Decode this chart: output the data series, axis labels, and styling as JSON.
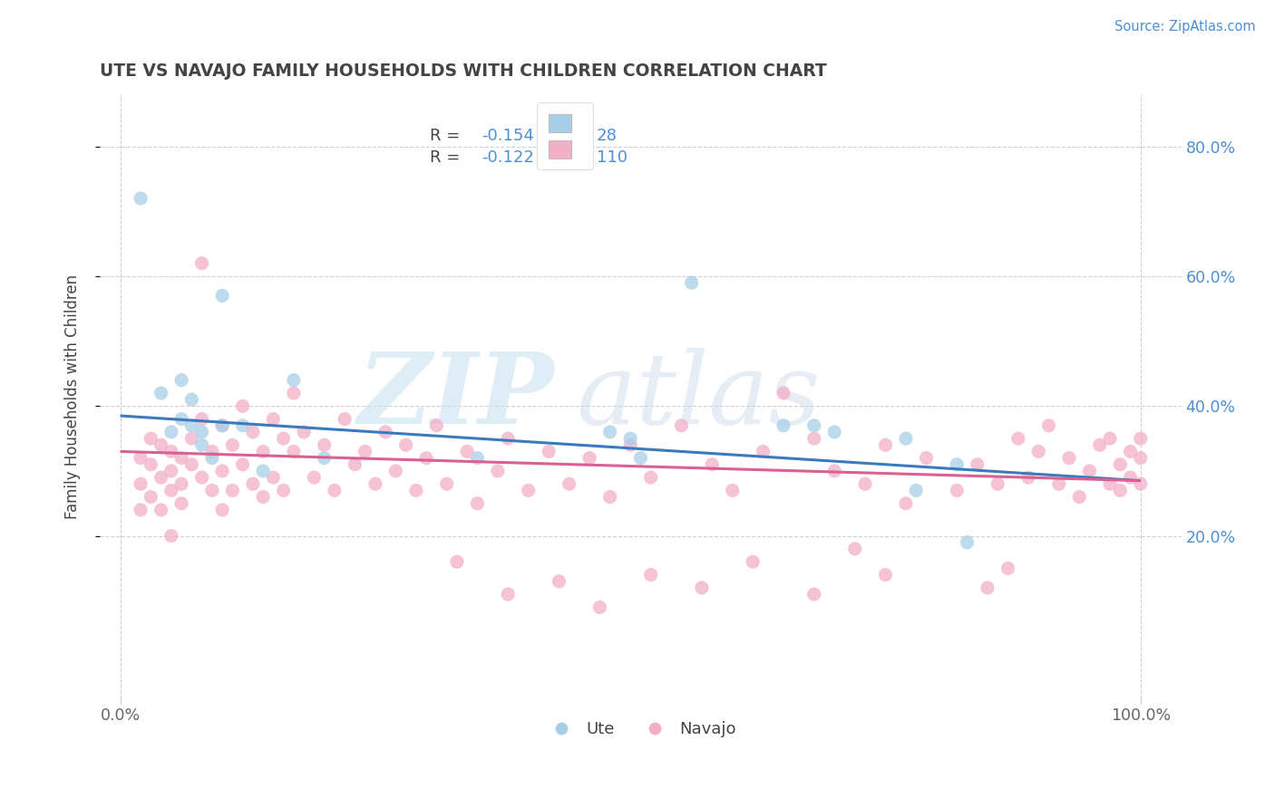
{
  "title": "UTE VS NAVAJO FAMILY HOUSEHOLDS WITH CHILDREN CORRELATION CHART",
  "source": "Source: ZipAtlas.com",
  "ylabel": "Family Households with Children",
  "watermark_zip": "ZIP",
  "watermark_atlas": "atlas",
  "ute_R": -0.154,
  "ute_N": 28,
  "navajo_R": -0.122,
  "navajo_N": 110,
  "ute_color": "#a8cfe8",
  "navajo_color": "#f4afc8",
  "ute_line_color": "#3a7abf",
  "navajo_line_color": "#d96090",
  "title_color": "#444444",
  "source_color": "#4a90d9",
  "tick_color_blue": "#4a90d9",
  "tick_color_dark": "#666666",
  "ute_x": [
    0.02,
    0.04,
    0.05,
    0.06,
    0.06,
    0.07,
    0.07,
    0.08,
    0.08,
    0.09,
    0.1,
    0.1,
    0.12,
    0.14,
    0.17,
    0.2,
    0.35,
    0.48,
    0.5,
    0.51,
    0.56,
    0.65,
    0.68,
    0.7,
    0.77,
    0.78,
    0.82,
    0.83
  ],
  "ute_y": [
    0.72,
    0.42,
    0.36,
    0.44,
    0.38,
    0.41,
    0.37,
    0.36,
    0.34,
    0.32,
    0.57,
    0.37,
    0.37,
    0.3,
    0.44,
    0.32,
    0.32,
    0.36,
    0.35,
    0.32,
    0.59,
    0.37,
    0.37,
    0.36,
    0.35,
    0.27,
    0.31,
    0.19
  ],
  "navajo_x": [
    0.02,
    0.02,
    0.02,
    0.03,
    0.03,
    0.03,
    0.04,
    0.04,
    0.04,
    0.05,
    0.05,
    0.05,
    0.05,
    0.06,
    0.06,
    0.06,
    0.07,
    0.07,
    0.08,
    0.08,
    0.08,
    0.09,
    0.09,
    0.1,
    0.1,
    0.1,
    0.11,
    0.11,
    0.12,
    0.12,
    0.13,
    0.13,
    0.14,
    0.14,
    0.15,
    0.15,
    0.16,
    0.16,
    0.17,
    0.17,
    0.18,
    0.19,
    0.2,
    0.21,
    0.22,
    0.23,
    0.24,
    0.25,
    0.26,
    0.27,
    0.28,
    0.29,
    0.3,
    0.31,
    0.32,
    0.34,
    0.35,
    0.37,
    0.38,
    0.4,
    0.42,
    0.44,
    0.46,
    0.48,
    0.5,
    0.52,
    0.55,
    0.58,
    0.6,
    0.63,
    0.65,
    0.68,
    0.7,
    0.73,
    0.75,
    0.77,
    0.79,
    0.82,
    0.84,
    0.86,
    0.88,
    0.89,
    0.9,
    0.91,
    0.92,
    0.93,
    0.94,
    0.95,
    0.96,
    0.97,
    0.97,
    0.98,
    0.98,
    0.99,
    0.99,
    1.0,
    1.0,
    1.0,
    0.85,
    0.87,
    0.75,
    0.72,
    0.68,
    0.62,
    0.57,
    0.52,
    0.47,
    0.43,
    0.38,
    0.33
  ],
  "navajo_y": [
    0.32,
    0.28,
    0.24,
    0.35,
    0.31,
    0.26,
    0.29,
    0.34,
    0.24,
    0.3,
    0.27,
    0.33,
    0.2,
    0.32,
    0.28,
    0.25,
    0.35,
    0.31,
    0.38,
    0.29,
    0.62,
    0.33,
    0.27,
    0.37,
    0.3,
    0.24,
    0.34,
    0.27,
    0.4,
    0.31,
    0.36,
    0.28,
    0.33,
    0.26,
    0.38,
    0.29,
    0.35,
    0.27,
    0.42,
    0.33,
    0.36,
    0.29,
    0.34,
    0.27,
    0.38,
    0.31,
    0.33,
    0.28,
    0.36,
    0.3,
    0.34,
    0.27,
    0.32,
    0.37,
    0.28,
    0.33,
    0.25,
    0.3,
    0.35,
    0.27,
    0.33,
    0.28,
    0.32,
    0.26,
    0.34,
    0.29,
    0.37,
    0.31,
    0.27,
    0.33,
    0.42,
    0.35,
    0.3,
    0.28,
    0.34,
    0.25,
    0.32,
    0.27,
    0.31,
    0.28,
    0.35,
    0.29,
    0.33,
    0.37,
    0.28,
    0.32,
    0.26,
    0.3,
    0.34,
    0.28,
    0.35,
    0.31,
    0.27,
    0.33,
    0.29,
    0.35,
    0.28,
    0.32,
    0.12,
    0.15,
    0.14,
    0.18,
    0.11,
    0.16,
    0.12,
    0.14,
    0.09,
    0.13,
    0.11,
    0.16
  ],
  "ute_line_x0": 0.0,
  "ute_line_y0": 0.385,
  "ute_line_x1": 1.0,
  "ute_line_y1": 0.285,
  "navajo_line_x0": 0.0,
  "navajo_line_y0": 0.33,
  "navajo_line_x1": 1.0,
  "navajo_line_y1": 0.285,
  "ylim_min": -0.05,
  "ylim_max": 0.88,
  "xlim_min": -0.02,
  "xlim_max": 1.04
}
